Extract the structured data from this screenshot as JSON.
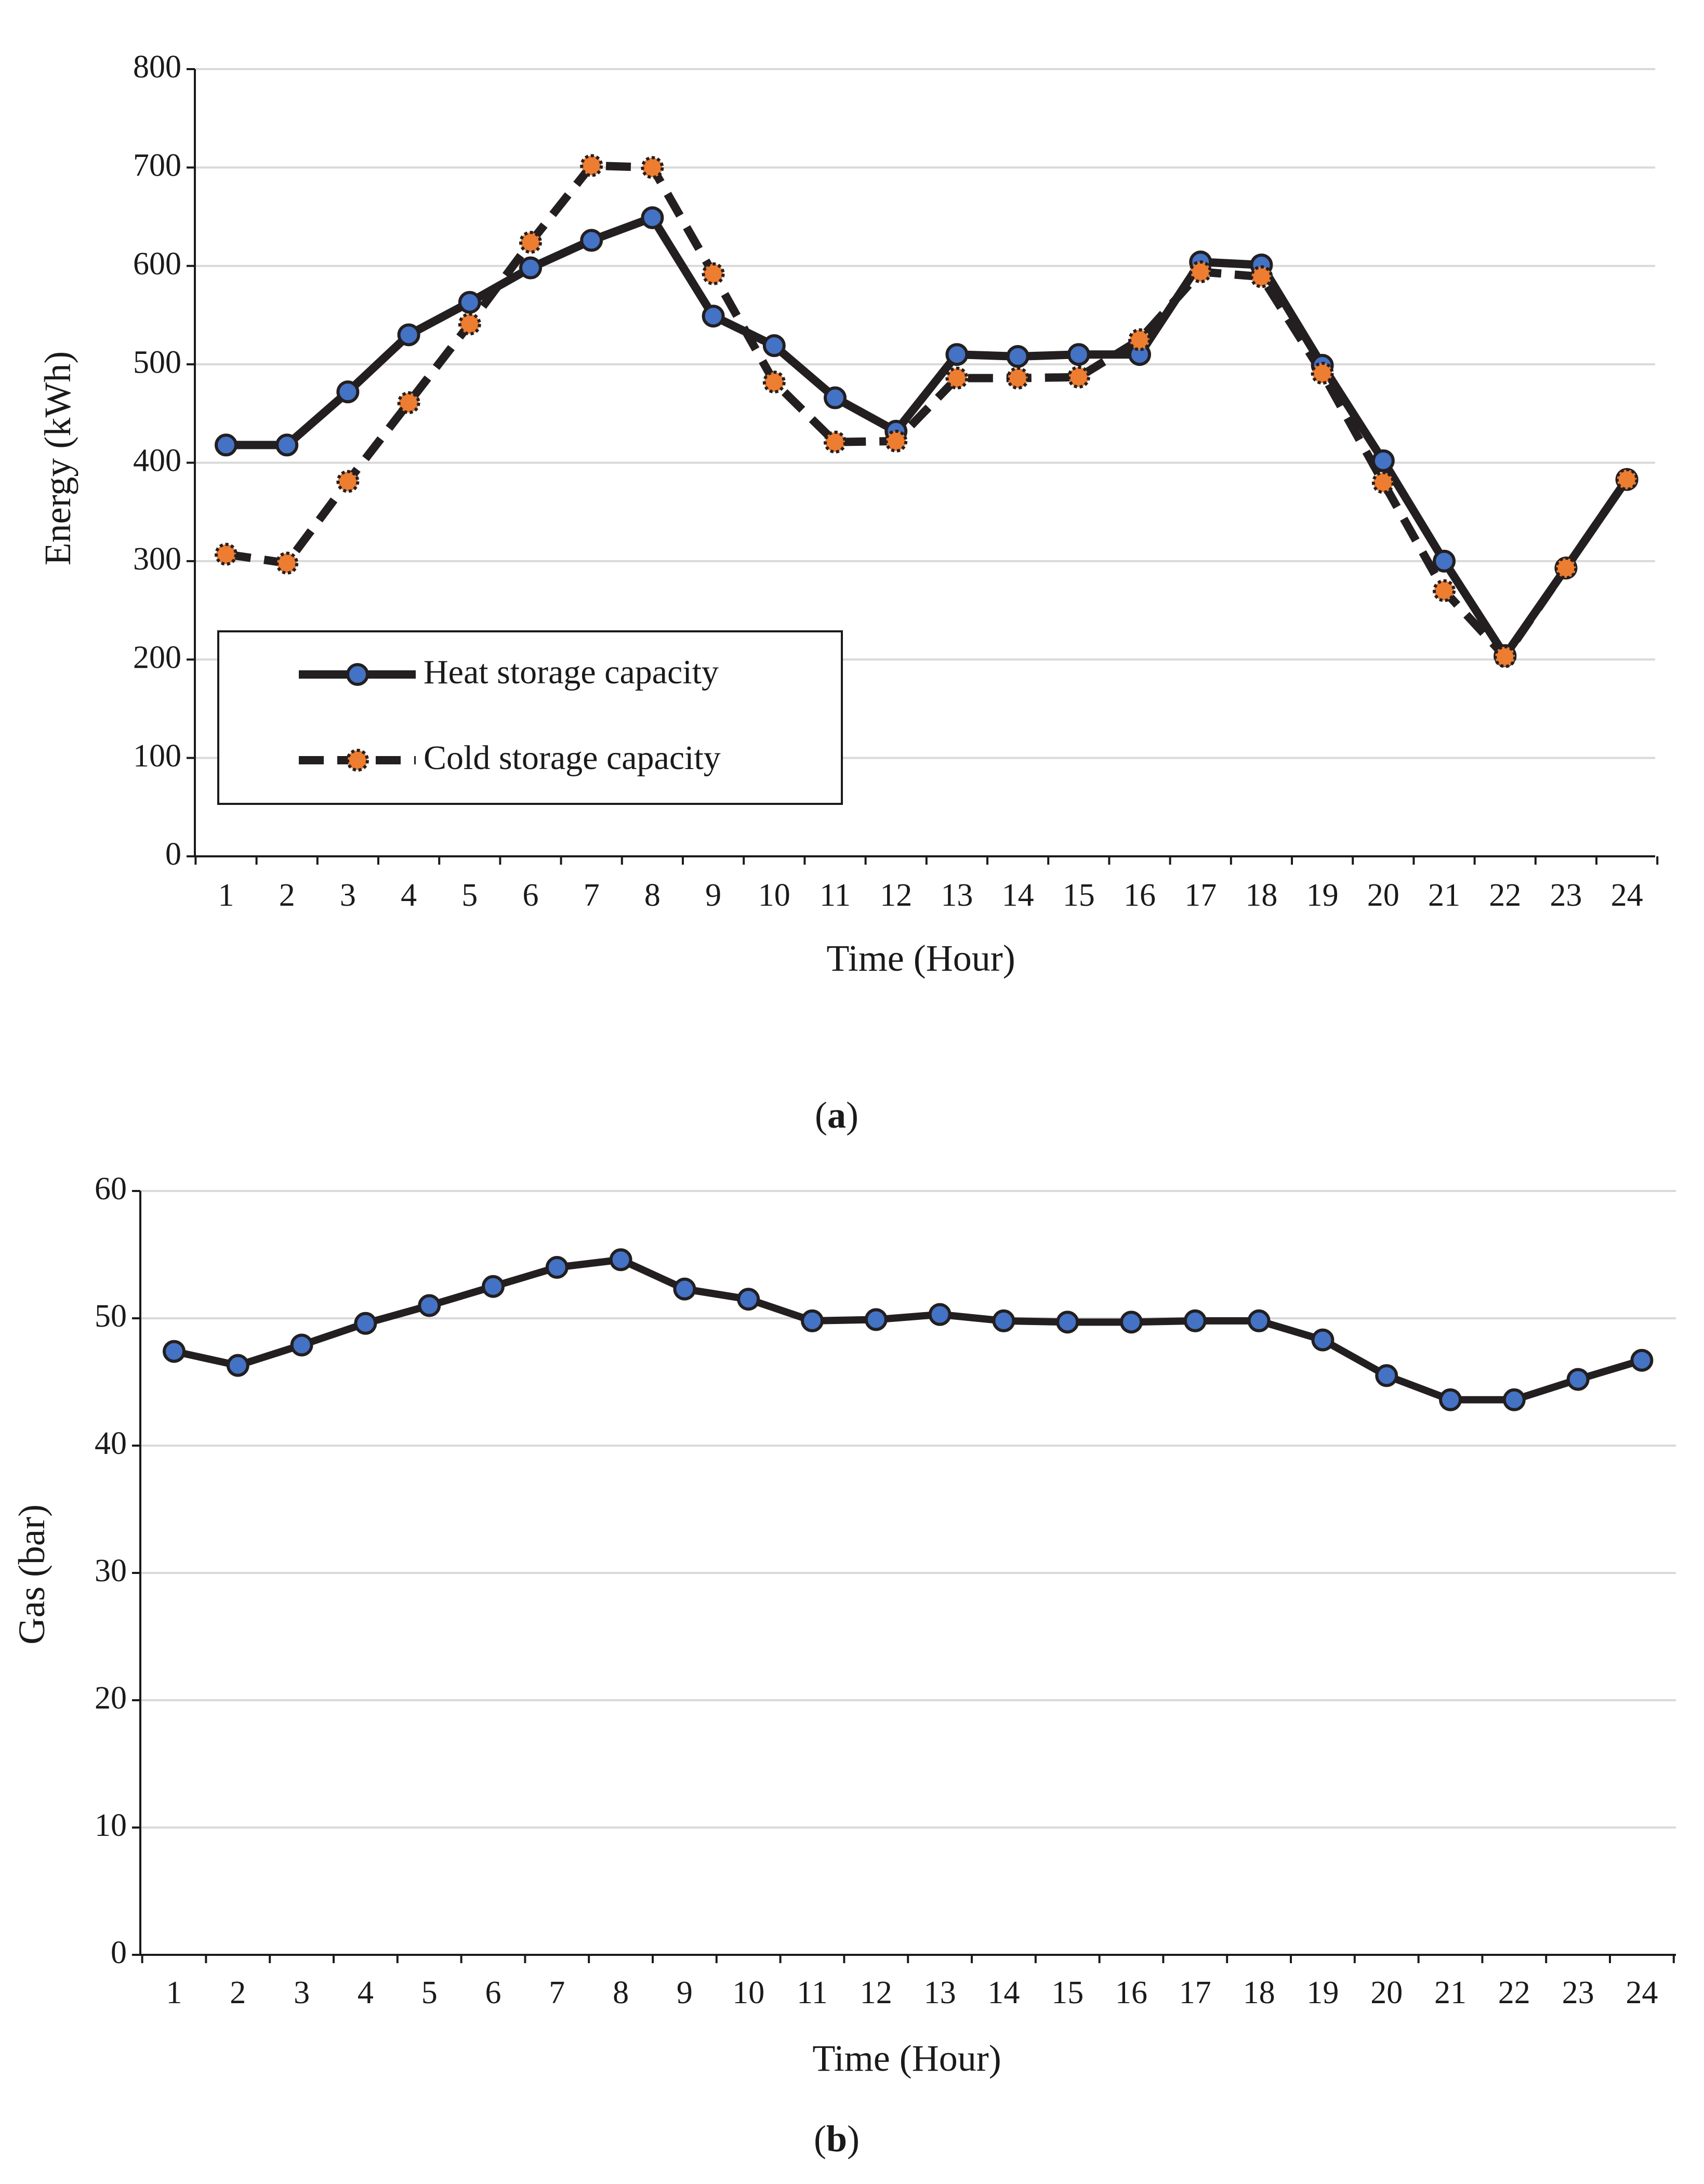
{
  "chart_data": [
    {
      "type": "line",
      "panel_label": "a",
      "xlabel": "Time (Hour)",
      "ylabel": "Energy (kWh)",
      "ylim": [
        0,
        800
      ],
      "yticks": [
        0,
        100,
        200,
        300,
        400,
        500,
        600,
        700,
        800
      ],
      "x": [
        1,
        2,
        3,
        4,
        5,
        6,
        7,
        8,
        9,
        10,
        11,
        12,
        13,
        14,
        15,
        16,
        17,
        18,
        19,
        20,
        21,
        22,
        23,
        24
      ],
      "grid": true,
      "legend_position": "bottom-left",
      "series": [
        {
          "name": "Heat storage capacity",
          "style": "solid",
          "marker_color": "#4472c4",
          "line_color": "#231f20",
          "values": [
            418,
            418,
            472,
            530,
            563,
            598,
            626,
            649,
            549,
            519,
            466,
            432,
            510,
            508,
            510,
            510,
            604,
            601,
            499,
            402,
            300,
            204,
            293,
            383
          ]
        },
        {
          "name": "Cold storage capacity",
          "style": "dashed",
          "marker_color": "#ed7d31",
          "line_color": "#231f20",
          "values": [
            307,
            298,
            381,
            461,
            541,
            624,
            702,
            700,
            592,
            482,
            421,
            422,
            486,
            486,
            487,
            525,
            594,
            589,
            491,
            380,
            270,
            203,
            293,
            383
          ]
        }
      ]
    },
    {
      "type": "line",
      "panel_label": "b",
      "xlabel": "Time (Hour)",
      "ylabel": "Gas (bar)",
      "ylim": [
        0,
        60
      ],
      "yticks": [
        0,
        10,
        20,
        30,
        40,
        50,
        60
      ],
      "x": [
        1,
        2,
        3,
        4,
        5,
        6,
        7,
        8,
        9,
        10,
        11,
        12,
        13,
        14,
        15,
        16,
        17,
        18,
        19,
        20,
        21,
        22,
        23,
        24
      ],
      "grid": true,
      "series": [
        {
          "style": "solid",
          "marker_color": "#4472c4",
          "line_color": "#231f20",
          "values": [
            47.4,
            46.3,
            47.9,
            49.6,
            51.0,
            52.5,
            54.0,
            54.6,
            52.3,
            51.5,
            49.8,
            49.9,
            50.3,
            49.8,
            49.7,
            49.7,
            49.8,
            49.8,
            48.3,
            45.5,
            43.6,
            43.6,
            45.2,
            46.7
          ]
        }
      ]
    }
  ]
}
